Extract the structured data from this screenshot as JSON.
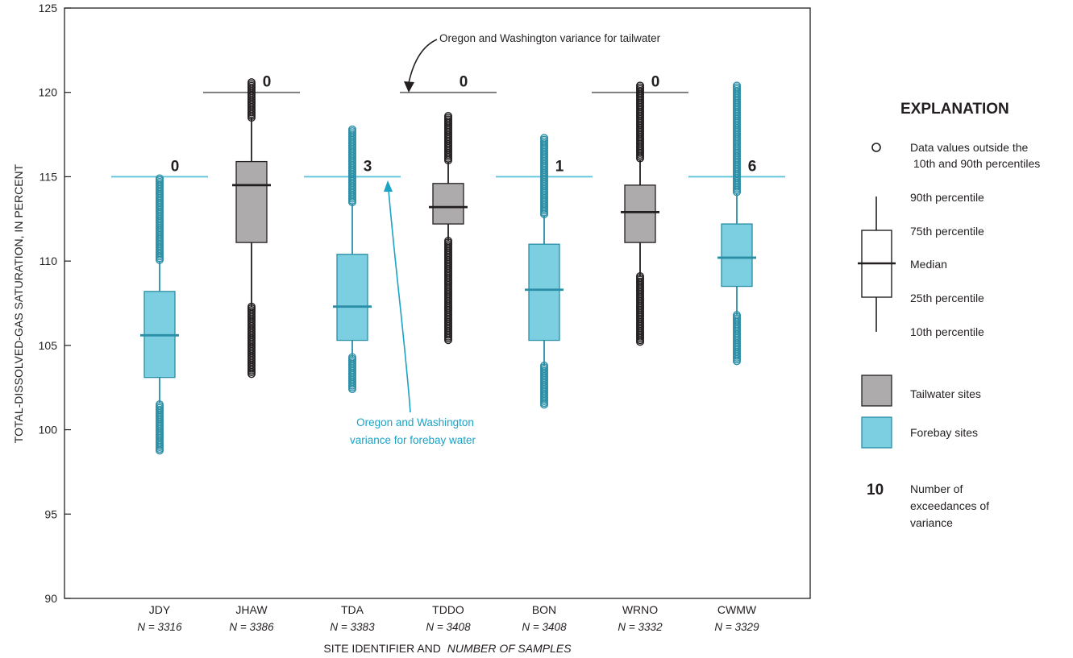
{
  "chart_data": {
    "type": "box",
    "ylabel": "TOTAL-DISSOLVED-GAS SATURATION, IN PERCENT",
    "xlabel_main": "SITE IDENTIFIER AND",
    "xlabel_italic": "NUMBER OF SAMPLES",
    "ylim": [
      90,
      125
    ],
    "yticks": [
      "90",
      "95",
      "100",
      "105",
      "110",
      "115",
      "120",
      "125"
    ],
    "boxes": [
      {
        "site": "JDY",
        "n_label": "N = 3316",
        "group": "forebay",
        "p10": 101.6,
        "q1": 103.1,
        "median": 105.6,
        "q3": 108.2,
        "p90": 110.0,
        "out_low": [
          98.7,
          101.5
        ],
        "out_high": [
          110.0,
          114.9
        ],
        "variance": 115,
        "exceedances": "0"
      },
      {
        "site": "JHAW",
        "n_label": "N = 3386",
        "group": "tailwater",
        "p10": 107.3,
        "q1": 111.1,
        "median": 114.5,
        "q3": 115.9,
        "p90": 118.5,
        "out_low": [
          103.3,
          107.3
        ],
        "out_high": [
          118.5,
          120.6
        ],
        "variance": 120,
        "exceedances": "0"
      },
      {
        "site": "TDA",
        "n_label": "N = 3383",
        "group": "forebay",
        "p10": 104.3,
        "q1": 105.3,
        "median": 107.3,
        "q3": 110.4,
        "p90": 113.4,
        "out_low": [
          102.4,
          104.3
        ],
        "out_high": [
          113.4,
          117.8
        ],
        "variance": 115,
        "exceedances": "3"
      },
      {
        "site": "TDDO",
        "n_label": "N = 3408",
        "group": "tailwater",
        "p10": 111.2,
        "q1": 112.2,
        "median": 113.2,
        "q3": 114.6,
        "p90": 115.9,
        "out_low": [
          105.3,
          111.2
        ],
        "out_high": [
          115.9,
          118.6
        ],
        "variance": 120,
        "exceedances": "0"
      },
      {
        "site": "BON",
        "n_label": "N = 3408",
        "group": "forebay",
        "p10": 103.8,
        "q1": 105.3,
        "median": 108.3,
        "q3": 111.0,
        "p90": 112.7,
        "out_low": [
          101.4,
          103.8
        ],
        "out_high": [
          112.7,
          117.3
        ],
        "variance": 115,
        "exceedances": "1"
      },
      {
        "site": "WRNO",
        "n_label": "N = 3332",
        "group": "tailwater",
        "p10": 109.1,
        "q1": 111.1,
        "median": 112.9,
        "q3": 114.5,
        "p90": 116.0,
        "out_low": [
          105.2,
          109.1
        ],
        "out_high": [
          116.0,
          120.4
        ],
        "variance": 120,
        "exceedances": "0"
      },
      {
        "site": "CWMW",
        "n_label": "N = 3329",
        "group": "forebay",
        "p10": 106.8,
        "q1": 108.5,
        "median": 110.2,
        "q3": 112.2,
        "p90": 114.0,
        "out_low": [
          104.0,
          106.8
        ],
        "out_high": [
          114.0,
          120.4
        ],
        "variance": 115,
        "exceedances": "6"
      }
    ],
    "annotations": {
      "tailwater": "Oregon and Washington variance for tailwater",
      "forebay_line1": "Oregon and Washington",
      "forebay_line2": "variance for forebay water"
    },
    "legend": {
      "title": "EXPLANATION",
      "outlier_line1": "Data values outside the",
      "outlier_line2": "10th and 90th percentiles",
      "p90": "90th percentile",
      "p75": "75th percentile",
      "median": "Median",
      "p25": "25th percentile",
      "p10": "10th percentile",
      "tailwater": "Tailwater sites",
      "forebay": "Forebay sites",
      "exc_number": "10",
      "exc_line1": "Number of",
      "exc_line2": "exceedances of",
      "exc_line3": "variance"
    },
    "colors": {
      "tailwater_fill": "#aeabad",
      "forebay_fill": "#7ccfe0",
      "forebay_line": "#2a8ea6",
      "variance_forebay": "#5fc3da",
      "variance_tailwater": "#6d6e71",
      "outlier_forebay": "#2a8ea6",
      "outlier_tailwater": "#231f20",
      "annotation_forebay": "#1ba3c6"
    }
  }
}
